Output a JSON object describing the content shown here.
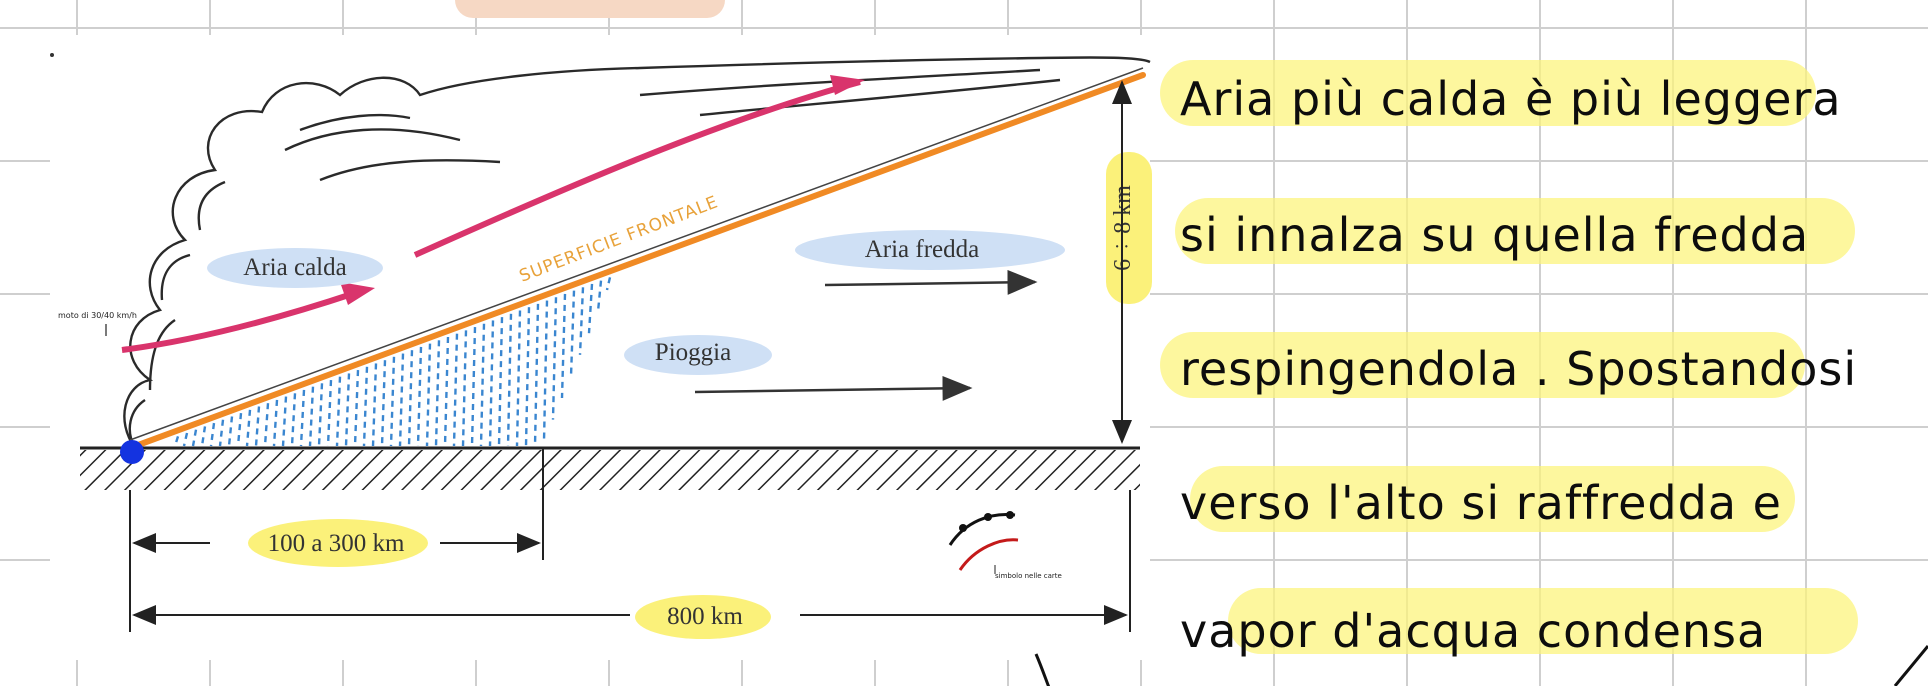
{
  "diagram": {
    "labels": {
      "warm_air": "Aria calda",
      "cold_air": "Aria fredda",
      "rain": "Pioggia",
      "frontal_surface": "SUPERFICIE FRONTALE",
      "height": "6 ÷ 8 km",
      "distance_short": "100 a 300 km",
      "distance_long": "800 km",
      "side_note": "moto di 30/40 km/h",
      "symbol_note": "simbolo nelle carte"
    },
    "colors": {
      "front_line": "#f08a24",
      "warm_arrow": "#d9346c",
      "rain": "#3a86d0",
      "highlight_blue": "#cfe0f5",
      "highlight_yellow": "#fbf06c",
      "marker": "#1433e0",
      "symbol_red": "#c41a1a"
    }
  },
  "notes": {
    "lines": [
      "Aria più calda è più leggera",
      "si innalza su quella fredda",
      "respingendola . Spostandosi",
      "verso l'alto si raffredda e",
      "vapor d'acqua condensa"
    ]
  }
}
